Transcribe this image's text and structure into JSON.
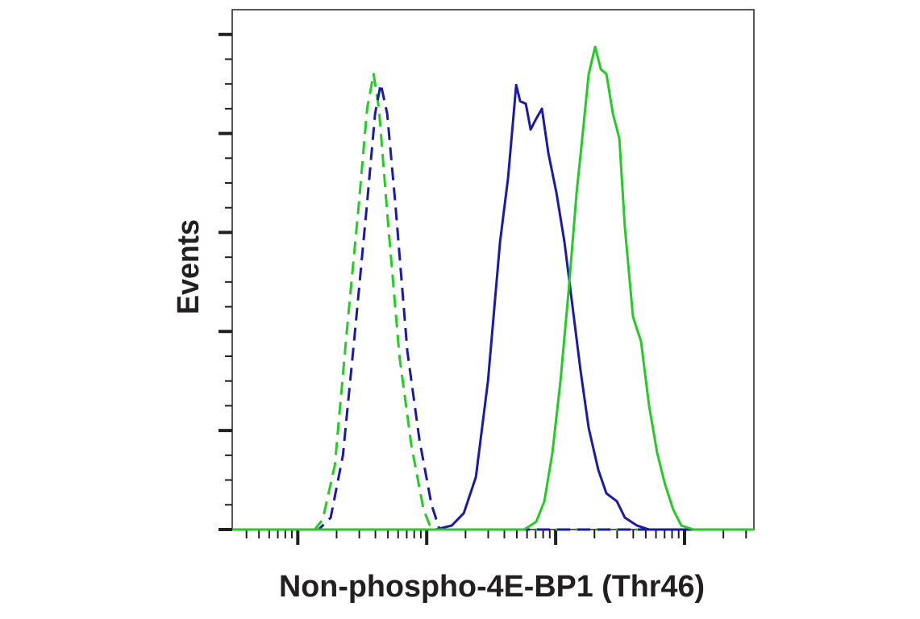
{
  "chart_data": {
    "type": "line",
    "xlabel": "Non-phospho-4E-BP1 (Thr46)",
    "ylabel": "Events",
    "xscale": "log",
    "xlim": [
      31,
      345000
    ],
    "xticks": [
      100,
      1000,
      10000,
      100000
    ],
    "xminorticks": [
      40,
      50,
      60,
      70,
      80,
      90,
      200,
      300,
      400,
      500,
      600,
      700,
      800,
      900,
      2000,
      3000,
      4000,
      5000,
      6000,
      7000,
      8000,
      9000,
      20000,
      30000,
      40000,
      50000,
      60000,
      70000,
      80000,
      90000,
      200000,
      300000
    ],
    "ylim": [
      0,
      105
    ],
    "yticks": [
      0,
      20,
      40,
      60,
      80,
      100
    ],
    "yminorticks": [
      5,
      10,
      15,
      25,
      30,
      35,
      45,
      50,
      55,
      65,
      70,
      75,
      85,
      90,
      95
    ],
    "series": [
      {
        "color": "#22cc22",
        "dashed": true,
        "x": [
          31,
          135,
          156,
          194,
          240,
          298,
          345,
          387,
          426,
          494,
          614,
          760,
          945,
          1090,
          345000
        ],
        "values": [
          0,
          0,
          2,
          13,
          40,
          66,
          85,
          92,
          85,
          64,
          35,
          17,
          4,
          0,
          0
        ]
      },
      {
        "color": "#1a1aa8",
        "dashed": true,
        "x": [
          31,
          145,
          180,
          224,
          278,
          345,
          398,
          440,
          494,
          570,
          708,
          879,
          1090,
          1259,
          345000
        ],
        "values": [
          0,
          0,
          2.4,
          15,
          40,
          66,
          84,
          90,
          84,
          66,
          36,
          18,
          5,
          0,
          0
        ]
      },
      {
        "color": "#1a1aa8",
        "dashed": false,
        "x": [
          31,
          1172,
          1563,
          1939,
          2406,
          2985,
          3704,
          4276,
          4941,
          5309,
          5871,
          6400,
          7079,
          7830,
          8786,
          10145,
          11720,
          13530,
          15630,
          18040,
          21440,
          24760,
          29850,
          34470,
          42790,
          53090,
          345000
        ],
        "values": [
          0,
          0,
          0.8,
          3.3,
          10.6,
          30,
          58,
          71,
          89.8,
          86.5,
          86,
          80.8,
          83,
          85,
          76,
          68,
          58,
          45,
          32,
          20.5,
          12,
          7.3,
          5.7,
          2.4,
          0.8,
          0,
          0
        ]
      },
      {
        "color": "#22cc22",
        "dashed": false,
        "x": [
          31,
          5707,
          7079,
          8178,
          9441,
          10900,
          12590,
          14540,
          16080,
          18040,
          20240,
          22390,
          24760,
          27780,
          31170,
          34470,
          39810,
          45970,
          53090,
          61310,
          70790,
          81760,
          94410,
          117200,
          345000
        ],
        "values": [
          0,
          0,
          1.6,
          5.7,
          15.5,
          30,
          48,
          68,
          79,
          92,
          97.5,
          93,
          92,
          84,
          79,
          61,
          43,
          38,
          25,
          15.5,
          9,
          4,
          0.8,
          0,
          0
        ]
      }
    ]
  }
}
